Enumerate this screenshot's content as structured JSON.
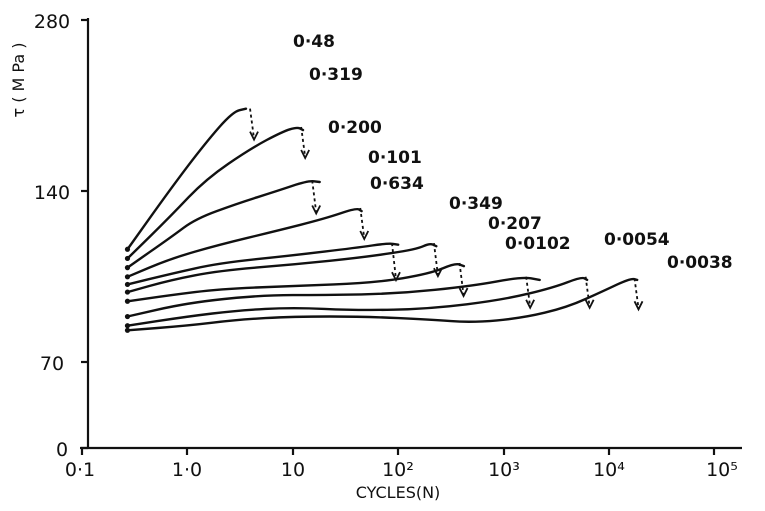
{
  "chart_data": {
    "type": "line",
    "title": "",
    "xlabel": "CYCLES(N)",
    "ylabel": "τ ( M Pa )",
    "x_scale": "log",
    "xlim": [
      0.1,
      100000
    ],
    "ylim": [
      0,
      280
    ],
    "x_tick_labels": [
      "0·1",
      "1·0",
      "10",
      "10²",
      "10³",
      "10⁴",
      "10⁵"
    ],
    "y_tick_labels": [
      "0",
      "70",
      "140",
      "280"
    ],
    "series": [
      {
        "name": "0·48",
        "points": [
          [
            0.27,
            130
          ],
          [
            0.7,
            170
          ],
          [
            1.5,
            200
          ],
          [
            2.7,
            220
          ],
          [
            3.6,
            222
          ]
        ]
      },
      {
        "name": "0·319",
        "points": [
          [
            0.27,
            124
          ],
          [
            0.7,
            152
          ],
          [
            1.5,
            176
          ],
          [
            4,
            196
          ],
          [
            8,
            207
          ],
          [
            11,
            210
          ],
          [
            12.5,
            208
          ]
        ]
      },
      {
        "name": "0·200",
        "points": [
          [
            0.27,
            118
          ],
          [
            0.7,
            138
          ],
          [
            1.2,
            150
          ],
          [
            3,
            160
          ],
          [
            7,
            168
          ],
          [
            14,
            175
          ],
          [
            18,
            174
          ]
        ]
      },
      {
        "name": "0·101",
        "points": [
          [
            0.27,
            112
          ],
          [
            0.7,
            124
          ],
          [
            2,
            133
          ],
          [
            7,
            142
          ],
          [
            20,
            150
          ],
          [
            40,
            157
          ],
          [
            45,
            155
          ]
        ]
      },
      {
        "name": "0·634",
        "points": [
          [
            0.27,
            107
          ],
          [
            0.7,
            114
          ],
          [
            2,
            121
          ],
          [
            10,
            126
          ],
          [
            40,
            131
          ],
          [
            80,
            134
          ],
          [
            100,
            133
          ]
        ]
      },
      {
        "name": "0·349",
        "points": [
          [
            0.27,
            102
          ],
          [
            0.7,
            110
          ],
          [
            2,
            116
          ],
          [
            10,
            120
          ],
          [
            50,
            125
          ],
          [
            150,
            130
          ],
          [
            200,
            134
          ],
          [
            230,
            132
          ]
        ]
      },
      {
        "name": "0·207",
        "points": [
          [
            0.27,
            96
          ],
          [
            0.7,
            100
          ],
          [
            2,
            104
          ],
          [
            10,
            106
          ],
          [
            60,
            108
          ],
          [
            200,
            114
          ],
          [
            350,
            121
          ],
          [
            420,
            119
          ]
        ]
      },
      {
        "name": "0·0102",
        "points": [
          [
            0.27,
            86
          ],
          [
            1,
            95
          ],
          [
            5,
            100
          ],
          [
            20,
            100
          ],
          [
            100,
            101
          ],
          [
            500,
            106
          ],
          [
            1500,
            112
          ],
          [
            2200,
            110
          ]
        ]
      },
      {
        "name": "0·0054",
        "points": [
          [
            0.27,
            80
          ],
          [
            1,
            86
          ],
          [
            3,
            90
          ],
          [
            10,
            92
          ],
          [
            40,
            90
          ],
          [
            200,
            91
          ],
          [
            1000,
            97
          ],
          [
            3000,
            105
          ],
          [
            5500,
            112
          ],
          [
            6200,
            110
          ]
        ]
      },
      {
        "name": "0·0038",
        "points": [
          [
            0.27,
            77
          ],
          [
            1,
            80
          ],
          [
            3,
            84
          ],
          [
            10,
            86
          ],
          [
            50,
            86
          ],
          [
            200,
            84
          ],
          [
            500,
            82
          ],
          [
            1500,
            85
          ],
          [
            4000,
            92
          ],
          [
            9000,
            103
          ],
          [
            16000,
            111
          ],
          [
            18500,
            110
          ]
        ]
      }
    ]
  }
}
